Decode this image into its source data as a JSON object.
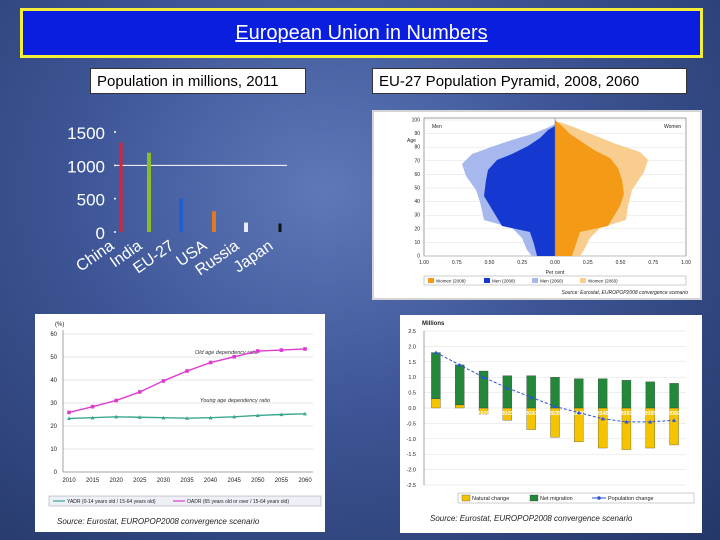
{
  "slide": {
    "title": "European Union in Numbers",
    "population_subtitle": "Population in millions, 2011",
    "pyramid_subtitle": "EU-27  Population Pyramid, 2008, 2060"
  },
  "pyramid": {
    "men_label": "Men",
    "women_label": "Women",
    "age_label": "Age",
    "xlabel": "Per cent",
    "y_ticks": [
      "100",
      "90",
      "80",
      "70",
      "60",
      "50",
      "40",
      "30",
      "20",
      "10",
      "0"
    ],
    "x_ticks": [
      "1.00",
      "0.75",
      "0.50",
      "0.25",
      "0.00",
      "0.25",
      "0.50",
      "0.75",
      "1.00"
    ],
    "legend": [
      "Women (2008)",
      "Men (2008)",
      "Men (2060)",
      "Women (2060)"
    ],
    "source": "Source: Eurostat, EUROPOP2008 convergence scenario"
  },
  "dependency": {
    "percent_label": "(%)",
    "old_age_label": "Old age dependency ratio",
    "young_age_label": "Young age dependency ratio",
    "legend_young": "YADR (0-14 years old / 15-64 years old)",
    "legend_old": "OADR (65 years old or over / 15-64 years old)",
    "source": "Source: Eurostat, EUROPOP2008 convergence scenario"
  },
  "migration": {
    "unit_label": "Millions",
    "legend_natural": "Natural change",
    "legend_net": "Net migration",
    "legend_pop": "Population change",
    "source": "Source: Eurostat, EUROPOP2008 convergence scenario"
  },
  "chart_data": [
    {
      "type": "bar",
      "title": "Population in millions, 2011",
      "categories": [
        "China",
        "India",
        "EU-27",
        "USA",
        "Russia",
        "Japan"
      ],
      "values": [
        1340,
        1190,
        502,
        312,
        142,
        128
      ],
      "y_ticks": [
        "0",
        "500",
        "1000",
        "1500"
      ],
      "ylim": [
        0,
        1500
      ],
      "reference_line": 1000,
      "colors": [
        "#dd2233",
        "#8cbc2a",
        "#1f5fd0",
        "#e07a20",
        "#e8ecf5",
        "#111111"
      ]
    },
    {
      "type": "line",
      "title": "",
      "x": [
        "2010",
        "2015",
        "2020",
        "2025",
        "2030",
        "2035",
        "2040",
        "2045",
        "2050",
        "2055",
        "2060"
      ],
      "ylim": [
        0,
        60
      ],
      "y_ticks": [
        "0",
        "10",
        "20",
        "30",
        "40",
        "50",
        "60"
      ],
      "series": [
        {
          "name": "YADR (0-14 years old / 15-64 years old)",
          "color": "#3aa88e",
          "values": [
            23.3,
            23.6,
            24.0,
            23.8,
            23.6,
            23.4,
            23.6,
            24.0,
            24.6,
            25.0,
            25.3
          ]
        },
        {
          "name": "OADR (65 years old or over / 15-64 years old)",
          "color": "#e03ad0",
          "values": [
            25.9,
            28.4,
            31.1,
            34.8,
            39.6,
            43.9,
            47.6,
            50.1,
            52.6,
            53.0,
            53.5
          ]
        }
      ]
    },
    {
      "type": "bar",
      "title": "",
      "categories": [
        "2010",
        "2015",
        "2020",
        "2025",
        "2030",
        "2035",
        "2040",
        "2045",
        "2050",
        "2055",
        "2060"
      ],
      "ylim": [
        -2.5,
        2.5
      ],
      "y_ticks": [
        "2.5",
        "2.0",
        "1.5",
        "1.0",
        "0.5",
        "0.0",
        "-0.5",
        "-1.0",
        "-1.5",
        "-2.0",
        "-2.5"
      ],
      "series": [
        {
          "name": "Natural change",
          "color": "#f5c400",
          "values": [
            0.3,
            0.1,
            -0.2,
            -0.4,
            -0.7,
            -0.95,
            -1.1,
            -1.3,
            -1.35,
            -1.3,
            -1.2
          ]
        },
        {
          "name": "Net migration",
          "color": "#23883a",
          "values": [
            1.5,
            1.3,
            1.2,
            1.05,
            1.05,
            1.0,
            0.95,
            0.95,
            0.9,
            0.85,
            0.8
          ]
        },
        {
          "name": "Population change",
          "color": "#2b52d8",
          "values": [
            1.8,
            1.4,
            1.0,
            0.65,
            0.35,
            0.05,
            -0.15,
            -0.35,
            -0.45,
            -0.45,
            -0.4
          ]
        }
      ]
    }
  ]
}
